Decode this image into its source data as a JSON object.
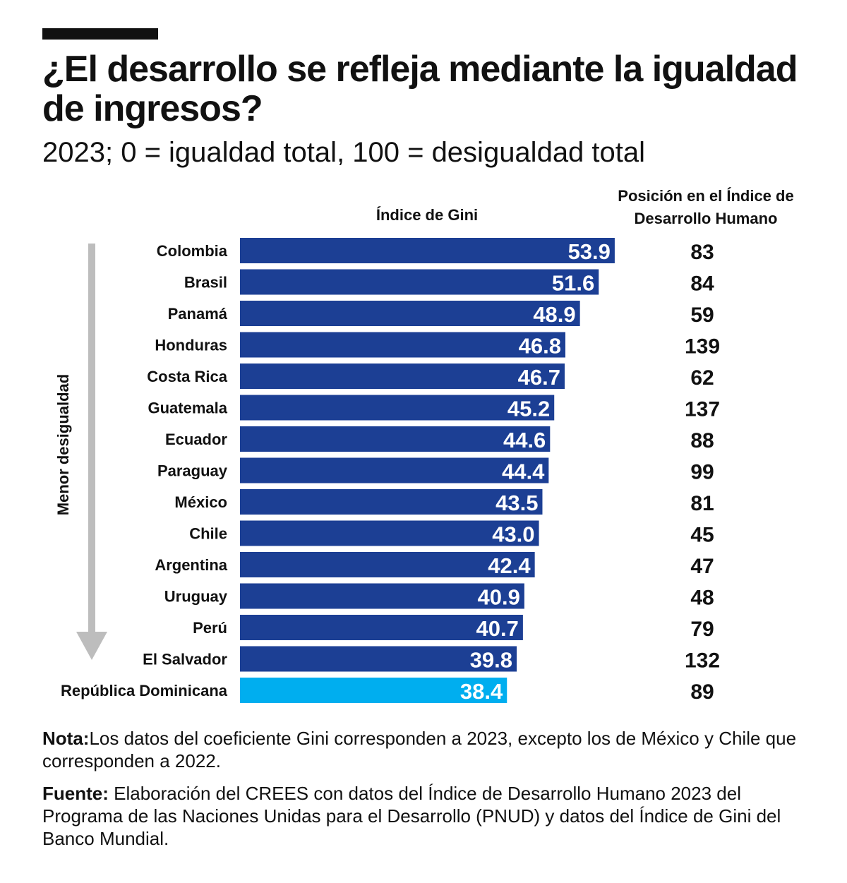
{
  "header": {
    "title": "¿El desarrollo se refleja mediante la igualdad de ingresos?",
    "subtitle": "2023; 0 = igualdad total, 100 = desigualdad total",
    "col_gini": "Índice de Gini",
    "col_idh": "Posición en el Índice de Desarrollo Humano",
    "axis_label": "Menor desigualdad"
  },
  "colors": {
    "bar": "#1c3f94",
    "highlight": "#00aeef",
    "arrow": "#bdbdbd",
    "text": "#111111"
  },
  "chart_data": {
    "type": "bar",
    "orientation": "horizontal",
    "title": "¿El desarrollo se refleja mediante la igualdad de ingresos?",
    "xlabel": "Índice de Gini",
    "categories": [
      "Colombia",
      "Brasil",
      "Panamá",
      "Honduras",
      "Costa Rica",
      "Guatemala",
      "Ecuador",
      "Paraguay",
      "México",
      "Chile",
      "Argentina",
      "Uruguay",
      "Perú",
      "El Salvador",
      "República Dominicana"
    ],
    "values": [
      53.9,
      51.6,
      48.9,
      46.8,
      46.7,
      45.2,
      44.6,
      44.4,
      43.5,
      43.0,
      42.4,
      40.9,
      40.7,
      39.8,
      38.4
    ],
    "labels": [
      "53.9",
      "51.6",
      "48.9",
      "46.8",
      "46.7",
      "45.2",
      "44.6",
      "44.4",
      "43.5",
      "43.0",
      "42.4",
      "40.9",
      "40.7",
      "39.8",
      "38.4"
    ],
    "idh_rank": [
      "83",
      "84",
      "59",
      "139",
      "62",
      "137",
      "88",
      "99",
      "81",
      "45",
      "47",
      "48",
      "79",
      "132",
      "89"
    ],
    "highlight": "República Dominicana",
    "xlim": [
      0,
      100
    ]
  },
  "footer": {
    "note_label": "Nota:",
    "note_text": "Los datos del coeficiente Gini corresponden a 2023, excepto los de México y Chile que corresponden a 2022.",
    "source_label": "Fuente:",
    "source_text": " Elaboración del CREES con datos del Índice de Desarrollo Humano 2023 del Programa de las Naciones Unidas para el Desarrollo (PNUD) y datos del Índice de Gini del Banco Mundial."
  }
}
